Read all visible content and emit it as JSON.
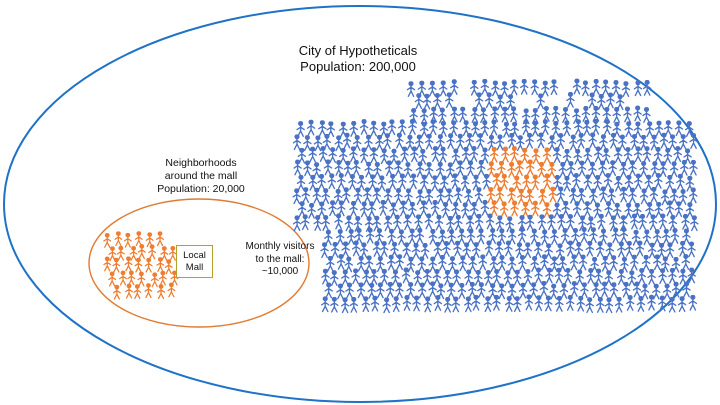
{
  "colors": {
    "city_outline": "#1f72c7",
    "neighborhood_outline": "#e07b32",
    "resident": "#4a72c4",
    "visitor": "#ee7d31",
    "mall_border": "#b5a02a"
  },
  "icons": {
    "person": "person-icon"
  },
  "city": {
    "title": "City of Hypotheticals",
    "population": "Population: 200,000"
  },
  "neighborhood": {
    "title_line1": "Neighborhoods",
    "title_line2": "around the mall",
    "population": "Population: 20,000"
  },
  "mall": {
    "line1": "Local",
    "line2": "Mall"
  },
  "visitors": {
    "line1": "Monthly visitors",
    "line2": "to the mall:",
    "line3": "~10,000"
  }
}
